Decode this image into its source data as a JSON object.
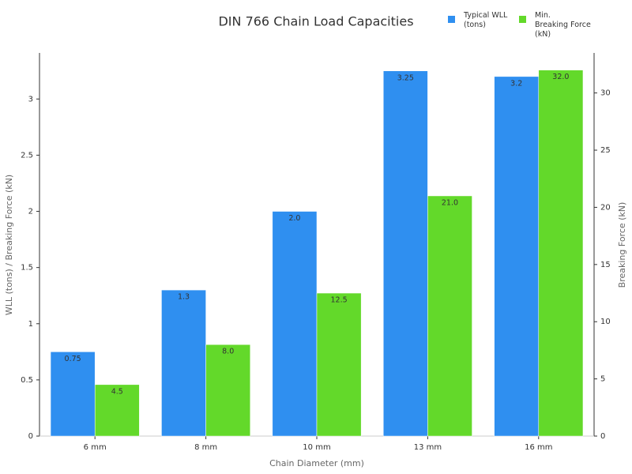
{
  "chart_data": {
    "type": "bar",
    "title": "DIN 766 Chain Load Capacities",
    "x_label": "Chain Diameter (mm)",
    "y_label": "WLL (tons) / Breaking Force (kN)",
    "y2_label": "Breaking Force (kN)",
    "categories": [
      "6 mm",
      "8 mm",
      "10 mm",
      "13 mm",
      "16 mm"
    ],
    "series": [
      {
        "name": "Typical WLL\n(tons)",
        "color": "#2f8ff0",
        "values": [
          0.75,
          1.3,
          2.0,
          3.25,
          3.2
        ],
        "value_labels": [
          "0.75",
          "1.3",
          "2.0",
          "3.25",
          "3.2"
        ]
      },
      {
        "name": "Min.\nBreaking Force\n(kN)",
        "color": "#63d92a",
        "axis": "y2",
        "values": [
          4.5,
          8.0,
          12.5,
          21.0,
          32.0
        ],
        "value_labels": [
          "4.5",
          "8.0",
          "12.5",
          "21.0",
          "32.0"
        ]
      }
    ],
    "ylim": [
      0,
      3.41
    ],
    "yticks": [
      0,
      0.5,
      1,
      1.5,
      2,
      2.5,
      3
    ],
    "y2lim": [
      0,
      33.5
    ],
    "y2ticks": [
      0,
      5,
      10,
      15,
      20,
      25,
      30
    ]
  }
}
